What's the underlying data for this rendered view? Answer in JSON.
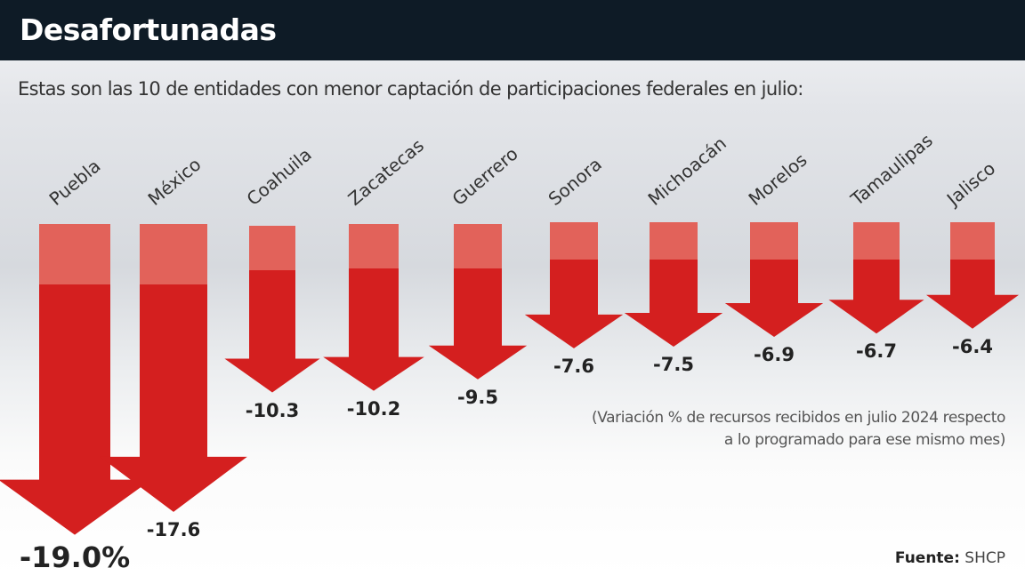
{
  "header": {
    "title": "Desafortunadas"
  },
  "subtitle": "Estas son las 10 de entidades con menor captación de participaciones federales en julio:",
  "note": "(Variación % de recursos recibidos en julio 2024 respecto a lo programado para ese mismo mes)",
  "source": {
    "label": "Fuente:",
    "value": "SHCP"
  },
  "colors": {
    "arrow": "#d41f1f",
    "arrow_top": "#e2625a",
    "header": "#0e1b26"
  },
  "chart_data": {
    "type": "bar",
    "title": "Desafortunadas",
    "categories": [
      "Puebla",
      "México",
      "Coahuila",
      "Zacatecas",
      "Guerrero",
      "Sonora",
      "Michoacán",
      "Morelos",
      "Tamaulipas",
      "Jalisco"
    ],
    "values": [
      -19.0,
      -17.6,
      -10.3,
      -10.2,
      -9.5,
      -7.6,
      -7.5,
      -6.9,
      -6.7,
      -6.4
    ],
    "value_labels": [
      "-19.0%",
      "-17.6",
      "-10.3",
      "-10.2",
      "-9.5",
      "-7.6",
      "-7.5",
      "-6.9",
      "-6.7",
      "-6.4"
    ],
    "unit": "%",
    "orientation": "downward arrows",
    "grid": false
  }
}
